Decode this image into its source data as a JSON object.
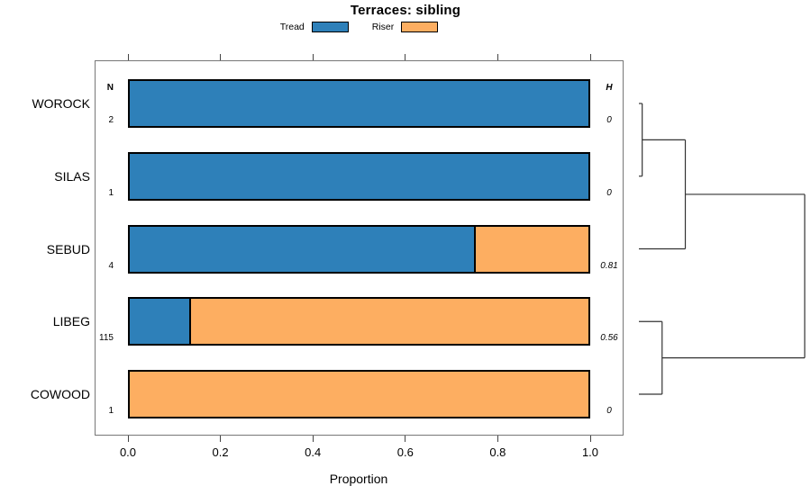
{
  "title": "Terraces: sibling",
  "legend": {
    "items": [
      {
        "label": "Tread",
        "color": "#2E80B9"
      },
      {
        "label": "Riser",
        "color": "#FDAE61"
      }
    ]
  },
  "headers": {
    "n": "N",
    "h": "H"
  },
  "x_axis": {
    "label": "Proportion",
    "tick_labels": [
      "0.0",
      "0.2",
      "0.4",
      "0.6",
      "0.8",
      "1.0"
    ],
    "min": 0,
    "max": 1
  },
  "chart_data": {
    "type": "bar",
    "orientation": "horizontal",
    "stacked": true,
    "title": "Terraces: sibling",
    "xlabel": "Proportion",
    "xlim": [
      0,
      1
    ],
    "grid": false,
    "legend_position": "top",
    "categories": [
      "WOROCK",
      "SILAS",
      "SEBUD",
      "LIBEG",
      "COWOOD"
    ],
    "series": [
      {
        "name": "Tread",
        "color": "#2E80B9",
        "values": [
          1.0,
          1.0,
          0.75,
          0.13,
          0.0
        ]
      },
      {
        "name": "Riser",
        "color": "#FDAE61",
        "values": [
          0.0,
          0.0,
          0.25,
          0.87,
          1.0
        ]
      }
    ],
    "row_annotations": {
      "N": [
        "2",
        "1",
        "4",
        "115",
        "1"
      ],
      "H": [
        "0",
        "0",
        "0.81",
        "0.56",
        "0"
      ]
    }
  },
  "dendrogram": {
    "leaves": [
      "WOROCK",
      "SILAS",
      "SEBUD",
      "LIBEG",
      "COWOOD"
    ],
    "merges": [
      {
        "a": "L0",
        "b": "L1",
        "height": 0.02
      },
      {
        "a": "M0",
        "b": "L2",
        "height": 0.28
      },
      {
        "a": "L3",
        "b": "L4",
        "height": 0.14
      },
      {
        "a": "M1",
        "b": "M2",
        "height": 1.0
      }
    ]
  }
}
